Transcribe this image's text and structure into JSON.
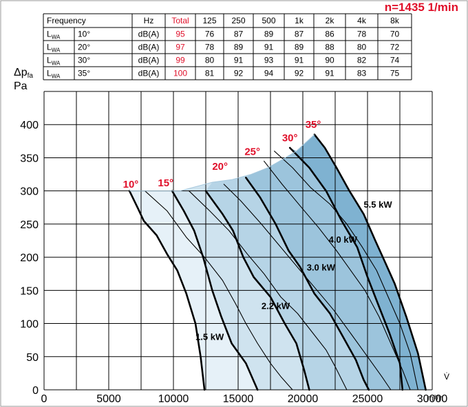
{
  "speed_label": "n=1435 1/min",
  "table": {
    "header": [
      "Frequency",
      "Hz",
      "Total",
      "125",
      "250",
      "500",
      "1k",
      "2k",
      "4k",
      "8k"
    ],
    "rows": [
      {
        "sym": "L",
        "sub": "WA",
        "angle": "10°",
        "unit": "dB(A)",
        "total": "95",
        "values": [
          "76",
          "87",
          "89",
          "87",
          "86",
          "78",
          "70"
        ]
      },
      {
        "sym": "L",
        "sub": "WA",
        "angle": "20°",
        "unit": "dB(A)",
        "total": "97",
        "values": [
          "78",
          "89",
          "91",
          "89",
          "88",
          "80",
          "72"
        ]
      },
      {
        "sym": "L",
        "sub": "WA",
        "angle": "30°",
        "unit": "dB(A)",
        "total": "99",
        "values": [
          "80",
          "91",
          "93",
          "91",
          "90",
          "82",
          "74"
        ]
      },
      {
        "sym": "L",
        "sub": "WA",
        "angle": "35°",
        "unit": "dB(A)",
        "total": "100",
        "values": [
          "81",
          "92",
          "94",
          "92",
          "91",
          "83",
          "75"
        ]
      }
    ]
  },
  "chart_data": {
    "type": "line",
    "y_axis": {
      "sym": "Δp",
      "sub": "fa",
      "unit": "Pa"
    },
    "x_axis": {
      "sym": "V̇",
      "unit": "m³/h"
    },
    "xlim": [
      0,
      30000
    ],
    "ylim": [
      0,
      450
    ],
    "x_ticks": [
      0,
      5000,
      10000,
      15000,
      20000,
      25000,
      30000
    ],
    "y_ticks": [
      0,
      50,
      100,
      150,
      200,
      250,
      300,
      350,
      400
    ],
    "grid": true,
    "series": [
      {
        "name": "10°",
        "points": [
          [
            6600,
            300
          ],
          [
            7300,
            272
          ],
          [
            7700,
            255
          ],
          [
            8700,
            233
          ],
          [
            9500,
            205
          ],
          [
            10300,
            180
          ],
          [
            11000,
            145
          ],
          [
            11700,
            100
          ],
          [
            12100,
            50
          ],
          [
            12400,
            0
          ]
        ]
      },
      {
        "name": "15°",
        "points": [
          [
            9900,
            300
          ],
          [
            10800,
            270
          ],
          [
            11600,
            240
          ],
          [
            12300,
            200
          ],
          [
            13000,
            150
          ],
          [
            13700,
            110
          ],
          [
            14500,
            70
          ],
          [
            15600,
            40
          ],
          [
            16500,
            0
          ]
        ]
      },
      {
        "name": "20°",
        "points": [
          [
            12500,
            300
          ],
          [
            13800,
            265
          ],
          [
            14600,
            240
          ],
          [
            15400,
            200
          ],
          [
            16200,
            170
          ],
          [
            17500,
            140
          ],
          [
            18600,
            100
          ],
          [
            19500,
            70
          ],
          [
            20100,
            30
          ],
          [
            20500,
            0
          ]
        ]
      },
      {
        "name": "25°",
        "points": [
          [
            15600,
            320
          ],
          [
            16700,
            290
          ],
          [
            17900,
            250
          ],
          [
            18900,
            210
          ],
          [
            19800,
            185
          ],
          [
            20900,
            145
          ],
          [
            22100,
            115
          ],
          [
            23100,
            80
          ],
          [
            24100,
            45
          ],
          [
            24700,
            15
          ],
          [
            25100,
            0
          ]
        ]
      },
      {
        "name": "30°",
        "points": [
          [
            19000,
            365
          ],
          [
            20500,
            335
          ],
          [
            21800,
            300
          ],
          [
            23000,
            255
          ],
          [
            24200,
            215
          ],
          [
            25000,
            170
          ],
          [
            25800,
            130
          ],
          [
            26700,
            85
          ],
          [
            27500,
            40
          ],
          [
            27700,
            0
          ]
        ]
      },
      {
        "name": "35°",
        "points": [
          [
            20900,
            385
          ],
          [
            21700,
            365
          ],
          [
            22600,
            335
          ],
          [
            23600,
            300
          ],
          [
            24700,
            265
          ],
          [
            25600,
            225
          ],
          [
            26300,
            195
          ],
          [
            27100,
            160
          ],
          [
            28000,
            110
          ],
          [
            28900,
            55
          ],
          [
            29500,
            0
          ]
        ]
      },
      {
        "name": "1.5 kW",
        "points": [
          [
            7800,
            300
          ],
          [
            9500,
            270
          ],
          [
            11000,
            230
          ],
          [
            12400,
            200
          ],
          [
            13800,
            165
          ],
          [
            14800,
            130
          ],
          [
            15600,
            100
          ],
          [
            16500,
            70
          ],
          [
            17500,
            40
          ],
          [
            18300,
            20
          ],
          [
            19200,
            0
          ]
        ]
      },
      {
        "name": "2.2 kW",
        "points": [
          [
            11200,
            300
          ],
          [
            12800,
            270
          ],
          [
            14300,
            240
          ],
          [
            15700,
            205
          ],
          [
            17000,
            175
          ],
          [
            18300,
            140
          ],
          [
            19600,
            115
          ],
          [
            20800,
            85
          ],
          [
            21800,
            60
          ],
          [
            22500,
            35
          ],
          [
            23400,
            0
          ]
        ]
      },
      {
        "name": "3.0 kW",
        "points": [
          [
            13900,
            310
          ],
          [
            15200,
            285
          ],
          [
            16800,
            250
          ],
          [
            18300,
            215
          ],
          [
            19800,
            180
          ],
          [
            21100,
            150
          ],
          [
            22400,
            120
          ],
          [
            23700,
            85
          ],
          [
            25000,
            50
          ],
          [
            26100,
            20
          ],
          [
            26800,
            0
          ]
        ]
      },
      {
        "name": "4.0 kW",
        "points": [
          [
            17000,
            345
          ],
          [
            18400,
            310
          ],
          [
            19900,
            275
          ],
          [
            21200,
            245
          ],
          [
            22600,
            210
          ],
          [
            23700,
            180
          ],
          [
            24800,
            150
          ],
          [
            25900,
            110
          ],
          [
            26800,
            70
          ],
          [
            27700,
            30
          ],
          [
            28300,
            0
          ]
        ]
      },
      {
        "name": "5.5 kW",
        "points": [
          [
            17800,
            360
          ],
          [
            19200,
            335
          ],
          [
            20600,
            305
          ],
          [
            22100,
            280
          ],
          [
            23400,
            250
          ],
          [
            24600,
            215
          ],
          [
            25700,
            180
          ],
          [
            26600,
            140
          ],
          [
            27500,
            100
          ],
          [
            28300,
            55
          ],
          [
            28900,
            0
          ]
        ]
      }
    ],
    "envelope_top": [
      [
        6600,
        300
      ],
      [
        10500,
        300
      ],
      [
        13000,
        313
      ],
      [
        14500,
        317
      ],
      [
        16000,
        325
      ],
      [
        17300,
        335
      ],
      [
        18200,
        345
      ],
      [
        19500,
        360
      ],
      [
        20900,
        385
      ]
    ],
    "angle_labels": [
      {
        "text": "10°",
        "x": 6700,
        "y": 305
      },
      {
        "text": "15°",
        "x": 9400,
        "y": 307
      },
      {
        "text": "20°",
        "x": 13600,
        "y": 332
      },
      {
        "text": "25°",
        "x": 16100,
        "y": 354
      },
      {
        "text": "30°",
        "x": 19000,
        "y": 375
      },
      {
        "text": "35°",
        "x": 20800,
        "y": 395
      }
    ],
    "power_labels": [
      {
        "text": "1.5 kW",
        "x": 12800,
        "y": 75
      },
      {
        "text": "2.2 kW",
        "x": 17900,
        "y": 122
      },
      {
        "text": "3.0 kW",
        "x": 21400,
        "y": 180
      },
      {
        "text": "4.0 kW",
        "x": 23100,
        "y": 222
      },
      {
        "text": "5.5 kW",
        "x": 25800,
        "y": 275
      }
    ]
  }
}
